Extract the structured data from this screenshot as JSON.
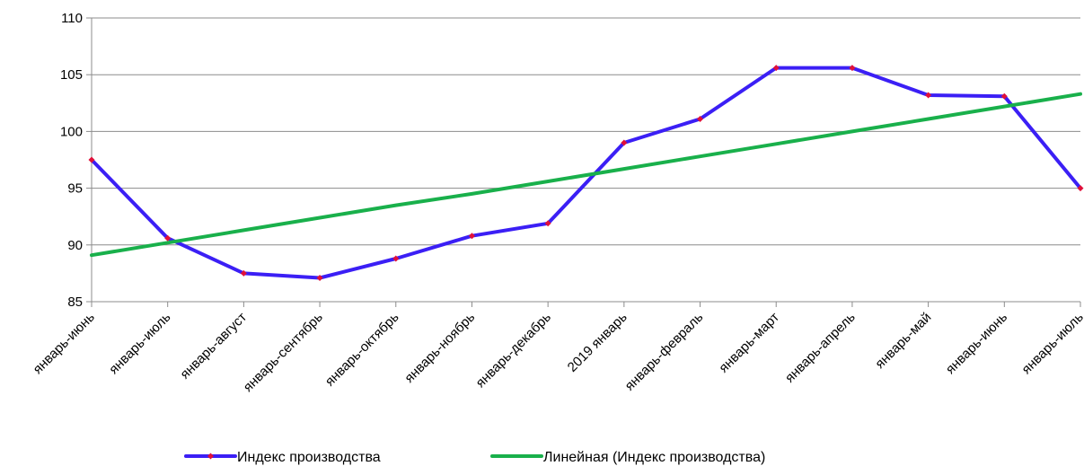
{
  "chart_data": {
    "type": "line",
    "categories": [
      "январь-июнь",
      "январь-июль",
      "январь-август",
      "январь-сентябрь",
      "январь-октябрь",
      "январь-ноябрь",
      "январь-декабрь",
      "2019 январь",
      "январь-февраль",
      "январь-март",
      "январь-апрель",
      "январь-май",
      "январь-июнь",
      "январь-июль"
    ],
    "series": [
      {
        "name": "Индекс производства",
        "values": [
          97.5,
          90.6,
          87.5,
          87.1,
          88.8,
          90.8,
          91.9,
          99.0,
          101.1,
          105.6,
          105.6,
          103.2,
          103.1,
          95.0
        ],
        "color": "#3b1ff5",
        "marker_color": "#e0103a"
      },
      {
        "name": "Линейная (Индекс производства)",
        "trend": "linear",
        "values": [
          89.1,
          90.2,
          91.3,
          92.4,
          93.5,
          94.5,
          95.6,
          96.7,
          97.8,
          98.9,
          100.0,
          101.1,
          102.2,
          103.3
        ],
        "color": "#19b04b"
      }
    ],
    "ylim": [
      85,
      110
    ],
    "yticks": [
      85,
      90,
      95,
      100,
      105,
      110
    ],
    "grid": true,
    "legend": "bottom-center"
  }
}
